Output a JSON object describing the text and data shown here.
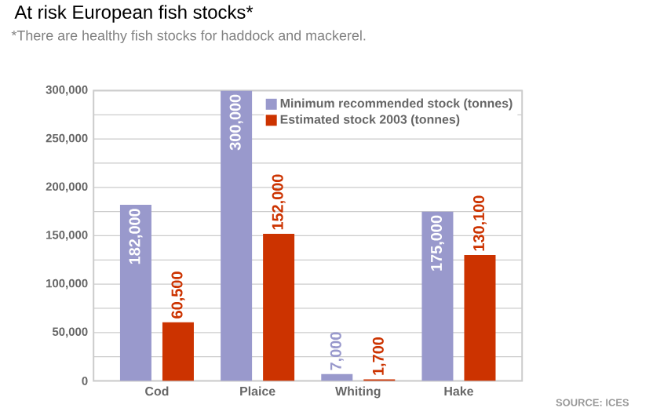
{
  "chart_data": {
    "type": "bar",
    "title": "At risk European fish stocks*",
    "subtitle": "*There are healthy fish stocks for haddock and mackerel.",
    "categories": [
      "Cod",
      "Plaice",
      "Whiting",
      "Hake"
    ],
    "series": [
      {
        "name": "Minimum recommended  stock (tonnes)",
        "color": "#9999cc",
        "values": [
          182000,
          300000,
          7000,
          175000
        ],
        "value_labels": [
          "182,000",
          "300,000",
          "7,000",
          "175,000"
        ]
      },
      {
        "name": "Estimated stock 2003 (tonnes)",
        "color": "#cc3300",
        "values": [
          60500,
          152000,
          1700,
          130100
        ],
        "value_labels": [
          "60,500",
          "152,000",
          "1,700",
          "130,100"
        ]
      }
    ],
    "ylim": [
      0,
      300000
    ],
    "yticks": [
      {
        "value": 0,
        "label": "0"
      },
      {
        "value": 25000,
        "label": null
      },
      {
        "value": 50000,
        "label": "50,000"
      },
      {
        "value": 75000,
        "label": null
      },
      {
        "value": 100000,
        "label": "100,000"
      },
      {
        "value": 125000,
        "label": null
      },
      {
        "value": 150000,
        "label": "150,000"
      },
      {
        "value": 175000,
        "label": null
      },
      {
        "value": 200000,
        "label": "200,000"
      },
      {
        "value": 225000,
        "label": null
      },
      {
        "value": 250000,
        "label": "250,000"
      },
      {
        "value": 275000,
        "label": null
      },
      {
        "value": 300000,
        "label": "300,000"
      }
    ],
    "grid": "y",
    "legend": "top right",
    "annotations": [
      "SOURCE: ICES"
    ]
  }
}
